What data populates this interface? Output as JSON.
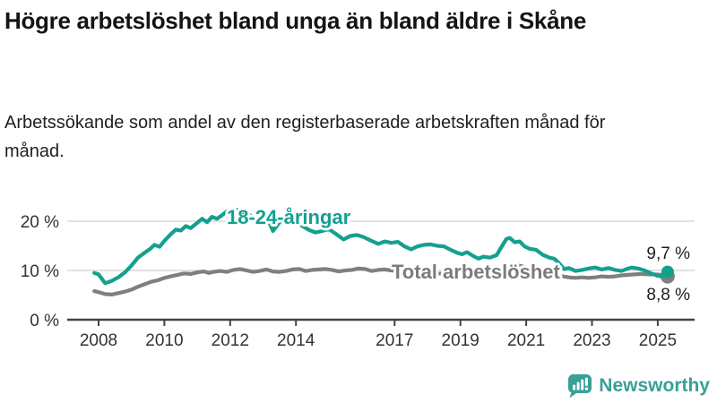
{
  "header": {
    "title": "Högre arbetslöshet bland unga än bland äldre i Skåne",
    "subtitle": "Arbetssökande som andel av den registerbaserade arbetskraften månad för månad."
  },
  "chart_data": {
    "type": "line",
    "unit": "%",
    "grid": "horizontal",
    "x_ticks": [
      2008,
      2010,
      2012,
      2014,
      2017,
      2019,
      2021,
      2023,
      2025
    ],
    "y_ticks": [
      {
        "value": 0,
        "label": "0 %"
      },
      {
        "value": 10,
        "label": "10 %"
      },
      {
        "value": 20,
        "label": "20 %"
      }
    ],
    "x_range": [
      2007.87,
      2025.3
    ],
    "y_range": [
      0,
      23
    ],
    "series": [
      {
        "id": "total",
        "name": "Total arbetslöshet",
        "color": "#7f7f7f",
        "label_color": "#7b7b7b",
        "end_value": 8.8,
        "end_label": "8,8 %",
        "points": [
          [
            2007.87,
            5.8
          ],
          [
            2008.0,
            5.6
          ],
          [
            2008.2,
            5.2
          ],
          [
            2008.4,
            5.1
          ],
          [
            2008.6,
            5.4
          ],
          [
            2008.8,
            5.7
          ],
          [
            2009.0,
            6.1
          ],
          [
            2009.2,
            6.7
          ],
          [
            2009.4,
            7.2
          ],
          [
            2009.6,
            7.7
          ],
          [
            2009.8,
            8.0
          ],
          [
            2010.0,
            8.5
          ],
          [
            2010.2,
            8.8
          ],
          [
            2010.4,
            9.1
          ],
          [
            2010.6,
            9.4
          ],
          [
            2010.8,
            9.3
          ],
          [
            2011.0,
            9.6
          ],
          [
            2011.2,
            9.8
          ],
          [
            2011.35,
            9.5
          ],
          [
            2011.5,
            9.7
          ],
          [
            2011.7,
            9.9
          ],
          [
            2011.9,
            9.7
          ],
          [
            2012.1,
            10.1
          ],
          [
            2012.3,
            10.3
          ],
          [
            2012.5,
            10.0
          ],
          [
            2012.7,
            9.7
          ],
          [
            2012.9,
            9.9
          ],
          [
            2013.1,
            10.2
          ],
          [
            2013.3,
            9.8
          ],
          [
            2013.5,
            9.7
          ],
          [
            2013.7,
            9.9
          ],
          [
            2013.9,
            10.2
          ],
          [
            2014.1,
            10.3
          ],
          [
            2014.3,
            9.9
          ],
          [
            2014.5,
            10.1
          ],
          [
            2014.7,
            10.2
          ],
          [
            2014.9,
            10.3
          ],
          [
            2015.1,
            10.1
          ],
          [
            2015.3,
            9.8
          ],
          [
            2015.5,
            10.0
          ],
          [
            2015.7,
            10.1
          ],
          [
            2015.9,
            10.4
          ],
          [
            2016.1,
            10.3
          ],
          [
            2016.3,
            9.9
          ],
          [
            2016.5,
            10.1
          ],
          [
            2016.7,
            10.2
          ],
          [
            2016.9,
            10.0
          ],
          [
            2017.1,
            9.9
          ],
          [
            2017.3,
            9.6
          ],
          [
            2017.5,
            9.5
          ],
          [
            2017.7,
            9.6
          ],
          [
            2017.9,
            9.7
          ],
          [
            2018.1,
            9.6
          ],
          [
            2018.3,
            9.4
          ],
          [
            2018.5,
            9.3
          ],
          [
            2018.7,
            9.4
          ],
          [
            2018.9,
            9.3
          ],
          [
            2019.1,
            9.2
          ],
          [
            2019.3,
            9.1
          ],
          [
            2019.5,
            9.1
          ],
          [
            2019.7,
            9.2
          ],
          [
            2019.9,
            9.4
          ],
          [
            2020.1,
            9.8
          ],
          [
            2020.3,
            10.8
          ],
          [
            2020.5,
            11.3
          ],
          [
            2020.7,
            11.1
          ],
          [
            2020.9,
            10.8
          ],
          [
            2021.1,
            10.4
          ],
          [
            2021.3,
            10.0
          ],
          [
            2021.5,
            9.6
          ],
          [
            2021.7,
            9.2
          ],
          [
            2021.9,
            8.9
          ],
          [
            2022.1,
            8.8
          ],
          [
            2022.3,
            8.6
          ],
          [
            2022.5,
            8.5
          ],
          [
            2022.7,
            8.6
          ],
          [
            2022.9,
            8.5
          ],
          [
            2023.1,
            8.6
          ],
          [
            2023.3,
            8.8
          ],
          [
            2023.5,
            8.7
          ],
          [
            2023.7,
            8.8
          ],
          [
            2023.9,
            9.0
          ],
          [
            2024.1,
            9.1
          ],
          [
            2024.3,
            9.2
          ],
          [
            2024.5,
            9.3
          ],
          [
            2024.7,
            9.2
          ],
          [
            2024.9,
            9.2
          ],
          [
            2025.1,
            9.1
          ],
          [
            2025.3,
            8.8
          ]
        ]
      },
      {
        "id": "youth",
        "name": "18-24-åringar",
        "color": "#14a08e",
        "label_color": "#14a08e",
        "end_value": 9.7,
        "end_label": "9,7 %",
        "points": [
          [
            2007.87,
            9.5
          ],
          [
            2008.0,
            9.2
          ],
          [
            2008.2,
            7.4
          ],
          [
            2008.4,
            7.9
          ],
          [
            2008.6,
            8.6
          ],
          [
            2008.8,
            9.6
          ],
          [
            2009.0,
            11.0
          ],
          [
            2009.2,
            12.6
          ],
          [
            2009.4,
            13.6
          ],
          [
            2009.55,
            14.3
          ],
          [
            2009.7,
            15.2
          ],
          [
            2009.85,
            14.8
          ],
          [
            2010.0,
            16.0
          ],
          [
            2010.2,
            17.4
          ],
          [
            2010.35,
            18.3
          ],
          [
            2010.5,
            18.1
          ],
          [
            2010.65,
            19.0
          ],
          [
            2010.8,
            18.6
          ],
          [
            2011.0,
            19.7
          ],
          [
            2011.15,
            20.5
          ],
          [
            2011.3,
            19.8
          ],
          [
            2011.45,
            20.9
          ],
          [
            2011.6,
            20.5
          ],
          [
            2011.75,
            21.2
          ],
          [
            2011.9,
            22.0
          ],
          [
            2012.05,
            21.4
          ],
          [
            2012.2,
            22.3
          ],
          [
            2012.35,
            21.7
          ],
          [
            2012.5,
            21.9
          ],
          [
            2012.65,
            20.9
          ],
          [
            2012.8,
            20.3
          ],
          [
            2012.95,
            21.0
          ],
          [
            2013.1,
            21.2
          ],
          [
            2013.3,
            18.0
          ],
          [
            2013.5,
            19.8
          ],
          [
            2013.7,
            20.6
          ],
          [
            2013.9,
            20.2
          ],
          [
            2014.1,
            19.4
          ],
          [
            2014.25,
            18.8
          ],
          [
            2014.4,
            18.2
          ],
          [
            2014.6,
            17.7
          ],
          [
            2014.8,
            18.0
          ],
          [
            2015.0,
            18.4
          ],
          [
            2015.2,
            17.5
          ],
          [
            2015.45,
            16.3
          ],
          [
            2015.65,
            17.0
          ],
          [
            2015.85,
            17.2
          ],
          [
            2016.05,
            16.8
          ],
          [
            2016.3,
            16.0
          ],
          [
            2016.5,
            15.4
          ],
          [
            2016.7,
            15.9
          ],
          [
            2016.9,
            15.6
          ],
          [
            2017.1,
            15.8
          ],
          [
            2017.3,
            14.9
          ],
          [
            2017.5,
            14.3
          ],
          [
            2017.7,
            14.9
          ],
          [
            2017.9,
            15.2
          ],
          [
            2018.1,
            15.3
          ],
          [
            2018.3,
            15.0
          ],
          [
            2018.5,
            14.9
          ],
          [
            2018.7,
            14.2
          ],
          [
            2018.9,
            13.6
          ],
          [
            2019.05,
            13.3
          ],
          [
            2019.2,
            13.7
          ],
          [
            2019.4,
            12.9
          ],
          [
            2019.55,
            12.4
          ],
          [
            2019.7,
            12.8
          ],
          [
            2019.9,
            12.6
          ],
          [
            2020.1,
            13.1
          ],
          [
            2020.25,
            14.8
          ],
          [
            2020.4,
            16.4
          ],
          [
            2020.5,
            16.6
          ],
          [
            2020.65,
            15.7
          ],
          [
            2020.8,
            15.9
          ],
          [
            2020.95,
            14.9
          ],
          [
            2021.1,
            14.4
          ],
          [
            2021.3,
            14.2
          ],
          [
            2021.5,
            13.2
          ],
          [
            2021.7,
            12.6
          ],
          [
            2021.85,
            12.4
          ],
          [
            2022.0,
            11.5
          ],
          [
            2022.15,
            10.3
          ],
          [
            2022.3,
            10.5
          ],
          [
            2022.5,
            9.9
          ],
          [
            2022.7,
            10.1
          ],
          [
            2022.9,
            10.4
          ],
          [
            2023.1,
            10.6
          ],
          [
            2023.3,
            10.2
          ],
          [
            2023.5,
            10.5
          ],
          [
            2023.7,
            10.1
          ],
          [
            2023.9,
            9.9
          ],
          [
            2024.05,
            10.3
          ],
          [
            2024.2,
            10.6
          ],
          [
            2024.4,
            10.4
          ],
          [
            2024.6,
            10.0
          ],
          [
            2024.8,
            9.4
          ],
          [
            2025.0,
            8.9
          ],
          [
            2025.1,
            8.8
          ],
          [
            2025.3,
            9.7
          ]
        ]
      }
    ]
  },
  "branding": {
    "name": "Newsworthy",
    "color": "#3aa096",
    "icon": "newsworthy-bar-chart-bubble-icon"
  }
}
